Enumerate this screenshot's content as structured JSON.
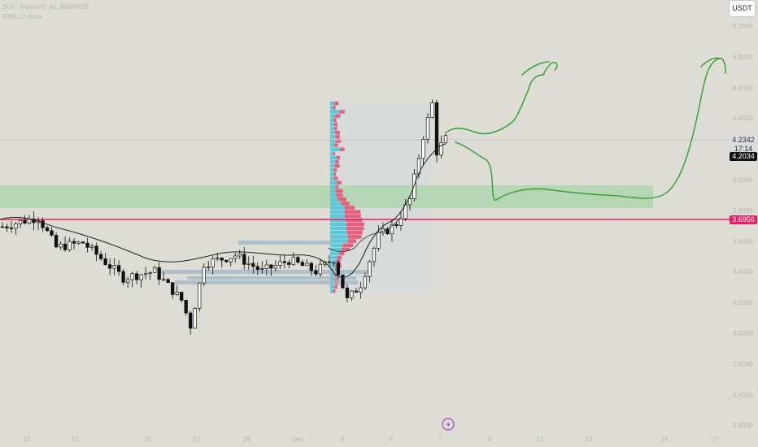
{
  "header": {
    "symbol_line": "SUI / TetherUS, 4h, BINANCE",
    "indicator_line": "EMA 13 close"
  },
  "currency_button": "USDT",
  "price_axis": [
    "5.0000",
    "4.8000",
    "4.6000",
    "4.4000",
    "4.2000",
    "4.0000",
    "3.8000",
    "3.6000",
    "3.4000",
    "3.2000",
    "3.0000",
    "2.8000",
    "2.6000",
    "2.4000"
  ],
  "time_axis": [
    "20",
    "22",
    "25",
    "27",
    "29",
    "Dec",
    "3",
    "5",
    "7",
    "9",
    "11",
    "13",
    "15",
    "17"
  ],
  "price_tags": {
    "last_price": "4.2342",
    "countdown": "17:14",
    "ema_value": "4.2034",
    "level_line": "3.6956"
  },
  "colors": {
    "background": "#ddddd6",
    "level_line": "#e91e63",
    "demand_zone": "#9fd39c",
    "projection": "#3aa13a",
    "candle_up": "#ffffff",
    "candle_down": "#111111",
    "volume_profile_up": "#5cc9d8",
    "volume_profile_down": "#e6607e"
  },
  "icons": {
    "lightning_badge": "lightning-icon"
  },
  "chart_data": {
    "type": "candlestick",
    "symbol": "SUI/USDT",
    "timeframe": "4h",
    "exchange": "BINANCE",
    "y_axis": {
      "min": 2.3,
      "max": 5.1
    },
    "x_range_label": [
      "20",
      "17"
    ],
    "segments": [
      {
        "label": "20 → 27",
        "from": 3.68,
        "to": 3.05
      },
      {
        "label": "27 → Dec",
        "from": 3.05,
        "to": 3.45
      },
      {
        "label": "Dec → 5",
        "from": 3.45,
        "to": 3.2
      },
      {
        "label": "5 → 7",
        "from": 3.2,
        "to": 4.45
      }
    ],
    "last_price": 4.2342,
    "ema_13": 4.2034,
    "horizontal_level": 3.6956,
    "demand_zone": {
      "low": 3.75,
      "high": 3.92
    },
    "volume_profile": {
      "low": 3.18,
      "high": 4.48,
      "poc": 3.7
    },
    "projections": [
      {
        "path": "up",
        "target": 4.85
      },
      {
        "path": "pullback_then_up",
        "pullback_to": 3.83,
        "target": 4.85
      }
    ]
  }
}
